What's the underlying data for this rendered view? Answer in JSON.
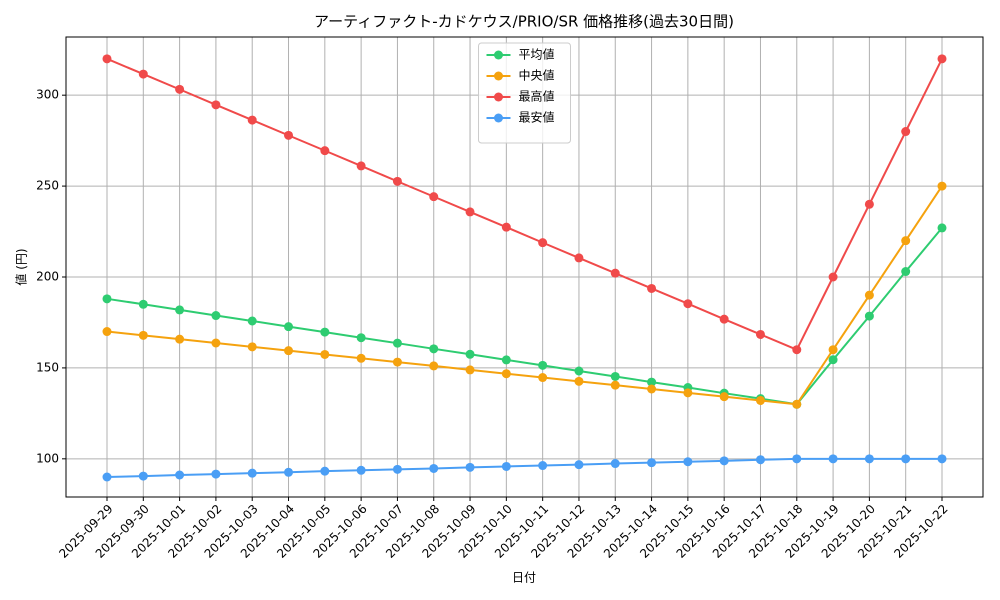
{
  "chart_data": {
    "type": "line",
    "title": "アーティファクト-カドケウス/PRIO/SR 価格推移(過去30日間)",
    "x_label": "日付",
    "y_label": "値 (円)",
    "categories": [
      "2025-09-29",
      "2025-09-30",
      "2025-10-01",
      "2025-10-02",
      "2025-10-03",
      "2025-10-04",
      "2025-10-05",
      "2025-10-06",
      "2025-10-07",
      "2025-10-08",
      "2025-10-09",
      "2025-10-10",
      "2025-10-11",
      "2025-10-12",
      "2025-10-13",
      "2025-10-14",
      "2025-10-15",
      "2025-10-16",
      "2025-10-17",
      "2025-10-18",
      "2025-10-19",
      "2025-10-20",
      "2025-10-21",
      "2025-10-22"
    ],
    "series": [
      {
        "name": "平均値",
        "color": "#2ecc71",
        "values": [
          188,
          185,
          181.9,
          178.8,
          175.8,
          172.7,
          169.7,
          166.6,
          163.6,
          160.5,
          157.5,
          154.4,
          151.4,
          148.3,
          145.3,
          142.2,
          139.2,
          136.1,
          133.1,
          130,
          154.5,
          178.5,
          203,
          227
        ]
      },
      {
        "name": "中央値",
        "color": "#f5a20e",
        "values": [
          170,
          167.9,
          165.8,
          163.7,
          161.6,
          159.5,
          157.4,
          155.3,
          153.2,
          151.1,
          148.9,
          146.8,
          144.7,
          142.6,
          140.5,
          138.4,
          136.3,
          134.2,
          132.1,
          130,
          160,
          190,
          220,
          250
        ]
      },
      {
        "name": "最高値",
        "color": "#f04a4a",
        "values": [
          320,
          311.6,
          303.2,
          294.7,
          286.3,
          277.9,
          269.5,
          261.1,
          252.6,
          244.2,
          235.8,
          227.4,
          218.9,
          210.5,
          202.1,
          193.7,
          185.3,
          176.8,
          168.4,
          160,
          200,
          240,
          280,
          320
        ]
      },
      {
        "name": "最安値",
        "color": "#4a9ef5",
        "values": [
          90,
          90.5,
          91.1,
          91.6,
          92.1,
          92.6,
          93.2,
          93.7,
          94.2,
          94.7,
          95.3,
          95.8,
          96.3,
          96.8,
          97.4,
          97.9,
          98.4,
          98.9,
          99.5,
          100,
          100,
          100,
          100,
          100
        ]
      }
    ],
    "ylim": [
      79,
      332
    ],
    "yticks": [
      100,
      150,
      200,
      250,
      300
    ],
    "grid": true,
    "legend": "upper center"
  }
}
